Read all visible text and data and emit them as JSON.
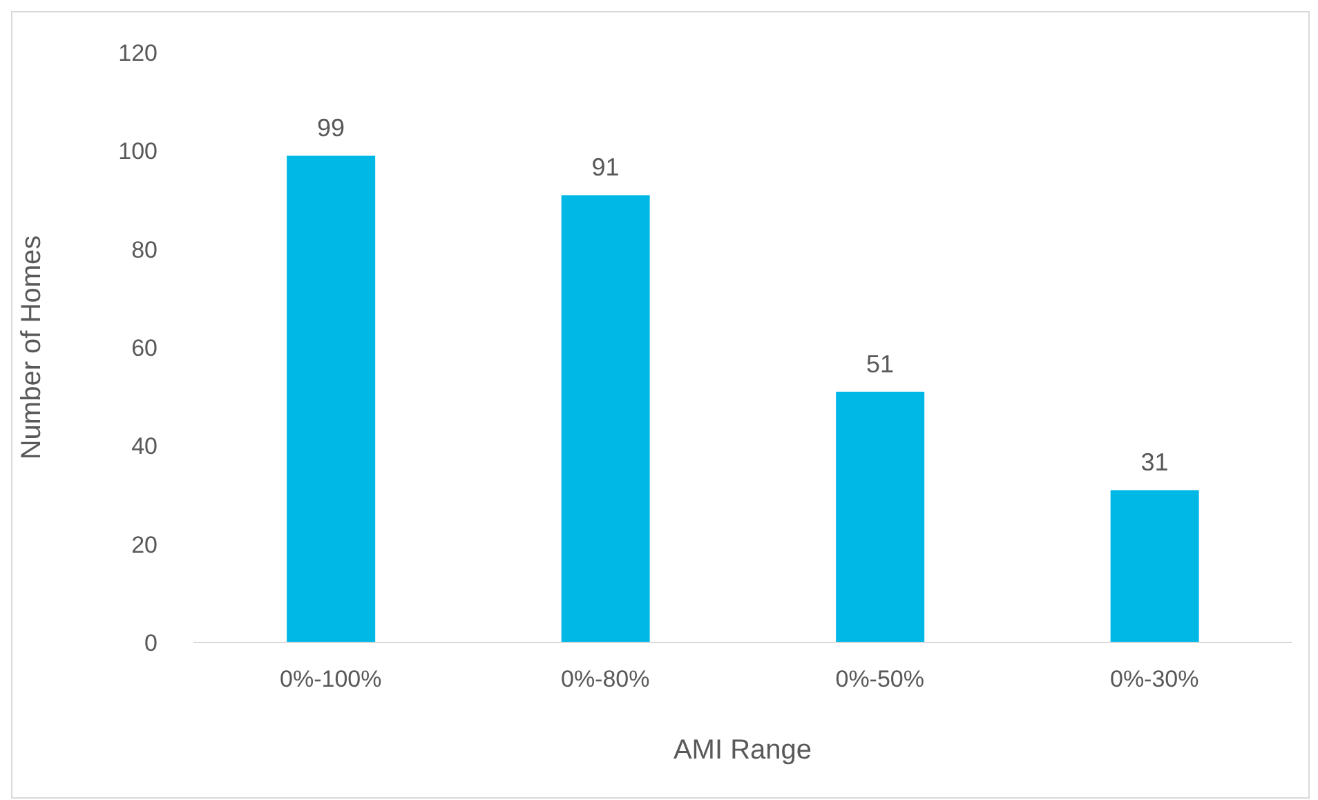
{
  "chart_data": {
    "type": "bar",
    "xlabel": "AMI Range",
    "ylabel": "Number of Homes",
    "categories": [
      "0%-100%",
      "0%-80%",
      "0%-50%",
      "0%-30%"
    ],
    "values": [
      99,
      91,
      51,
      31
    ],
    "color": "#00b8e6",
    "ylim": [
      0,
      120
    ],
    "yticks": [
      0,
      20,
      40,
      60,
      80,
      100,
      120
    ],
    "grid": false,
    "data_labels": true
  }
}
